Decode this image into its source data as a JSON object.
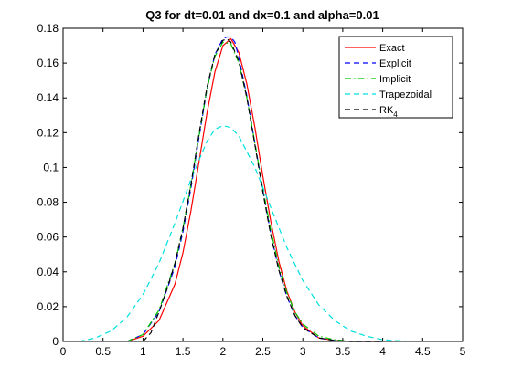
{
  "chart_data": {
    "type": "line",
    "title": "Q3 for dt=0.01 and dx=0.1 and alpha=0.01",
    "xlabel": "",
    "ylabel": "",
    "xlim": [
      0,
      5
    ],
    "ylim": [
      0,
      0.18
    ],
    "xticks": [
      0,
      0.5,
      1,
      1.5,
      2,
      2.5,
      3,
      3.5,
      4,
      4.5,
      5
    ],
    "yticks": [
      0,
      0.02,
      0.04,
      0.06,
      0.08,
      0.1,
      0.12,
      0.14,
      0.16,
      0.18
    ],
    "xtick_labels": [
      "0",
      "0.5",
      "1",
      "1.5",
      "2",
      "2.5",
      "3",
      "3.5",
      "4",
      "4.5",
      "5"
    ],
    "ytick_labels": [
      "0",
      "0.02",
      "0.04",
      "0.06",
      "0.08",
      "0.1",
      "0.12",
      "0.14",
      "0.16",
      "0.18"
    ],
    "grid": false,
    "legend_position": "top-right",
    "series": [
      {
        "name": "Exact",
        "color": "#ff0000",
        "dash": "solid",
        "x": [
          0.8,
          1.0,
          1.2,
          1.4,
          1.5,
          1.6,
          1.7,
          1.8,
          1.9,
          2.0,
          2.1,
          2.2,
          2.3,
          2.4,
          2.5,
          2.6,
          2.7,
          2.8,
          2.9,
          3.0,
          3.2,
          3.4,
          3.6,
          3.8,
          4.0
        ],
        "y": [
          0.0,
          0.003,
          0.012,
          0.033,
          0.051,
          0.075,
          0.103,
          0.131,
          0.155,
          0.17,
          0.174,
          0.166,
          0.148,
          0.123,
          0.095,
          0.069,
          0.046,
          0.029,
          0.017,
          0.009,
          0.002,
          0.0005,
          0.0,
          0.0,
          0.0
        ]
      },
      {
        "name": "Explicit",
        "color": "#0000ff",
        "dash": "dashed",
        "x": [
          0.8,
          1.0,
          1.2,
          1.4,
          1.5,
          1.6,
          1.7,
          1.8,
          1.9,
          2.0,
          2.05,
          2.1,
          2.15,
          2.2,
          2.3,
          2.4,
          2.5,
          2.6,
          2.7,
          2.8,
          2.9,
          3.0,
          3.2,
          3.4,
          3.6,
          4.0
        ],
        "y": [
          0.0,
          0.004,
          0.017,
          0.043,
          0.063,
          0.088,
          0.117,
          0.145,
          0.165,
          0.174,
          0.175,
          0.175,
          0.172,
          0.163,
          0.141,
          0.114,
          0.087,
          0.062,
          0.041,
          0.026,
          0.015,
          0.008,
          0.002,
          0.0005,
          0.0,
          0.0
        ]
      },
      {
        "name": "Implicit",
        "color": "#00c800",
        "dash": "dashdot",
        "x": [
          0.8,
          1.0,
          1.2,
          1.4,
          1.5,
          1.6,
          1.7,
          1.8,
          1.9,
          2.0,
          2.1,
          2.2,
          2.3,
          2.4,
          2.5,
          2.6,
          2.7,
          2.8,
          2.9,
          3.0,
          3.2,
          3.4,
          3.6,
          4.0
        ],
        "y": [
          0.0,
          0.004,
          0.018,
          0.045,
          0.065,
          0.09,
          0.118,
          0.145,
          0.164,
          0.172,
          0.171,
          0.16,
          0.14,
          0.114,
          0.088,
          0.064,
          0.043,
          0.028,
          0.017,
          0.01,
          0.003,
          0.001,
          0.0,
          0.0
        ]
      },
      {
        "name": "Trapezoidal",
        "color": "#00e0e0",
        "dash": "dashed",
        "x": [
          0.2,
          0.4,
          0.6,
          0.8,
          1.0,
          1.2,
          1.4,
          1.6,
          1.8,
          1.9,
          2.0,
          2.1,
          2.2,
          2.4,
          2.6,
          2.8,
          3.0,
          3.2,
          3.4,
          3.6,
          3.8,
          4.0,
          4.2,
          4.4
        ],
        "y": [
          0.0,
          0.002,
          0.006,
          0.014,
          0.027,
          0.045,
          0.068,
          0.093,
          0.115,
          0.122,
          0.124,
          0.123,
          0.118,
          0.1,
          0.077,
          0.054,
          0.035,
          0.021,
          0.012,
          0.006,
          0.003,
          0.001,
          0.0004,
          0.0
        ]
      },
      {
        "name": "RK4",
        "color": "#000000",
        "dash": "dashed",
        "x": [
          1.0,
          1.1,
          1.2,
          1.3,
          1.4,
          1.5,
          1.6,
          1.7,
          1.8,
          1.9,
          2.0,
          2.05,
          2.1,
          2.2,
          2.3,
          2.4,
          2.5,
          2.6,
          2.7,
          2.8,
          2.9,
          3.0,
          3.2,
          3.4,
          3.6,
          4.0
        ],
        "y": [
          0.0,
          0.005,
          0.017,
          0.03,
          0.045,
          0.065,
          0.09,
          0.119,
          0.146,
          0.165,
          0.173,
          0.174,
          0.172,
          0.161,
          0.14,
          0.113,
          0.086,
          0.061,
          0.041,
          0.026,
          0.015,
          0.008,
          0.002,
          0.0005,
          0.0,
          0.0
        ]
      }
    ],
    "legend": [
      {
        "label": "Exact",
        "sub": ""
      },
      {
        "label": "Explicit",
        "sub": ""
      },
      {
        "label": "Implicit",
        "sub": ""
      },
      {
        "label": "Trapezoidal",
        "sub": ""
      },
      {
        "label": "RK",
        "sub": "4"
      }
    ]
  }
}
